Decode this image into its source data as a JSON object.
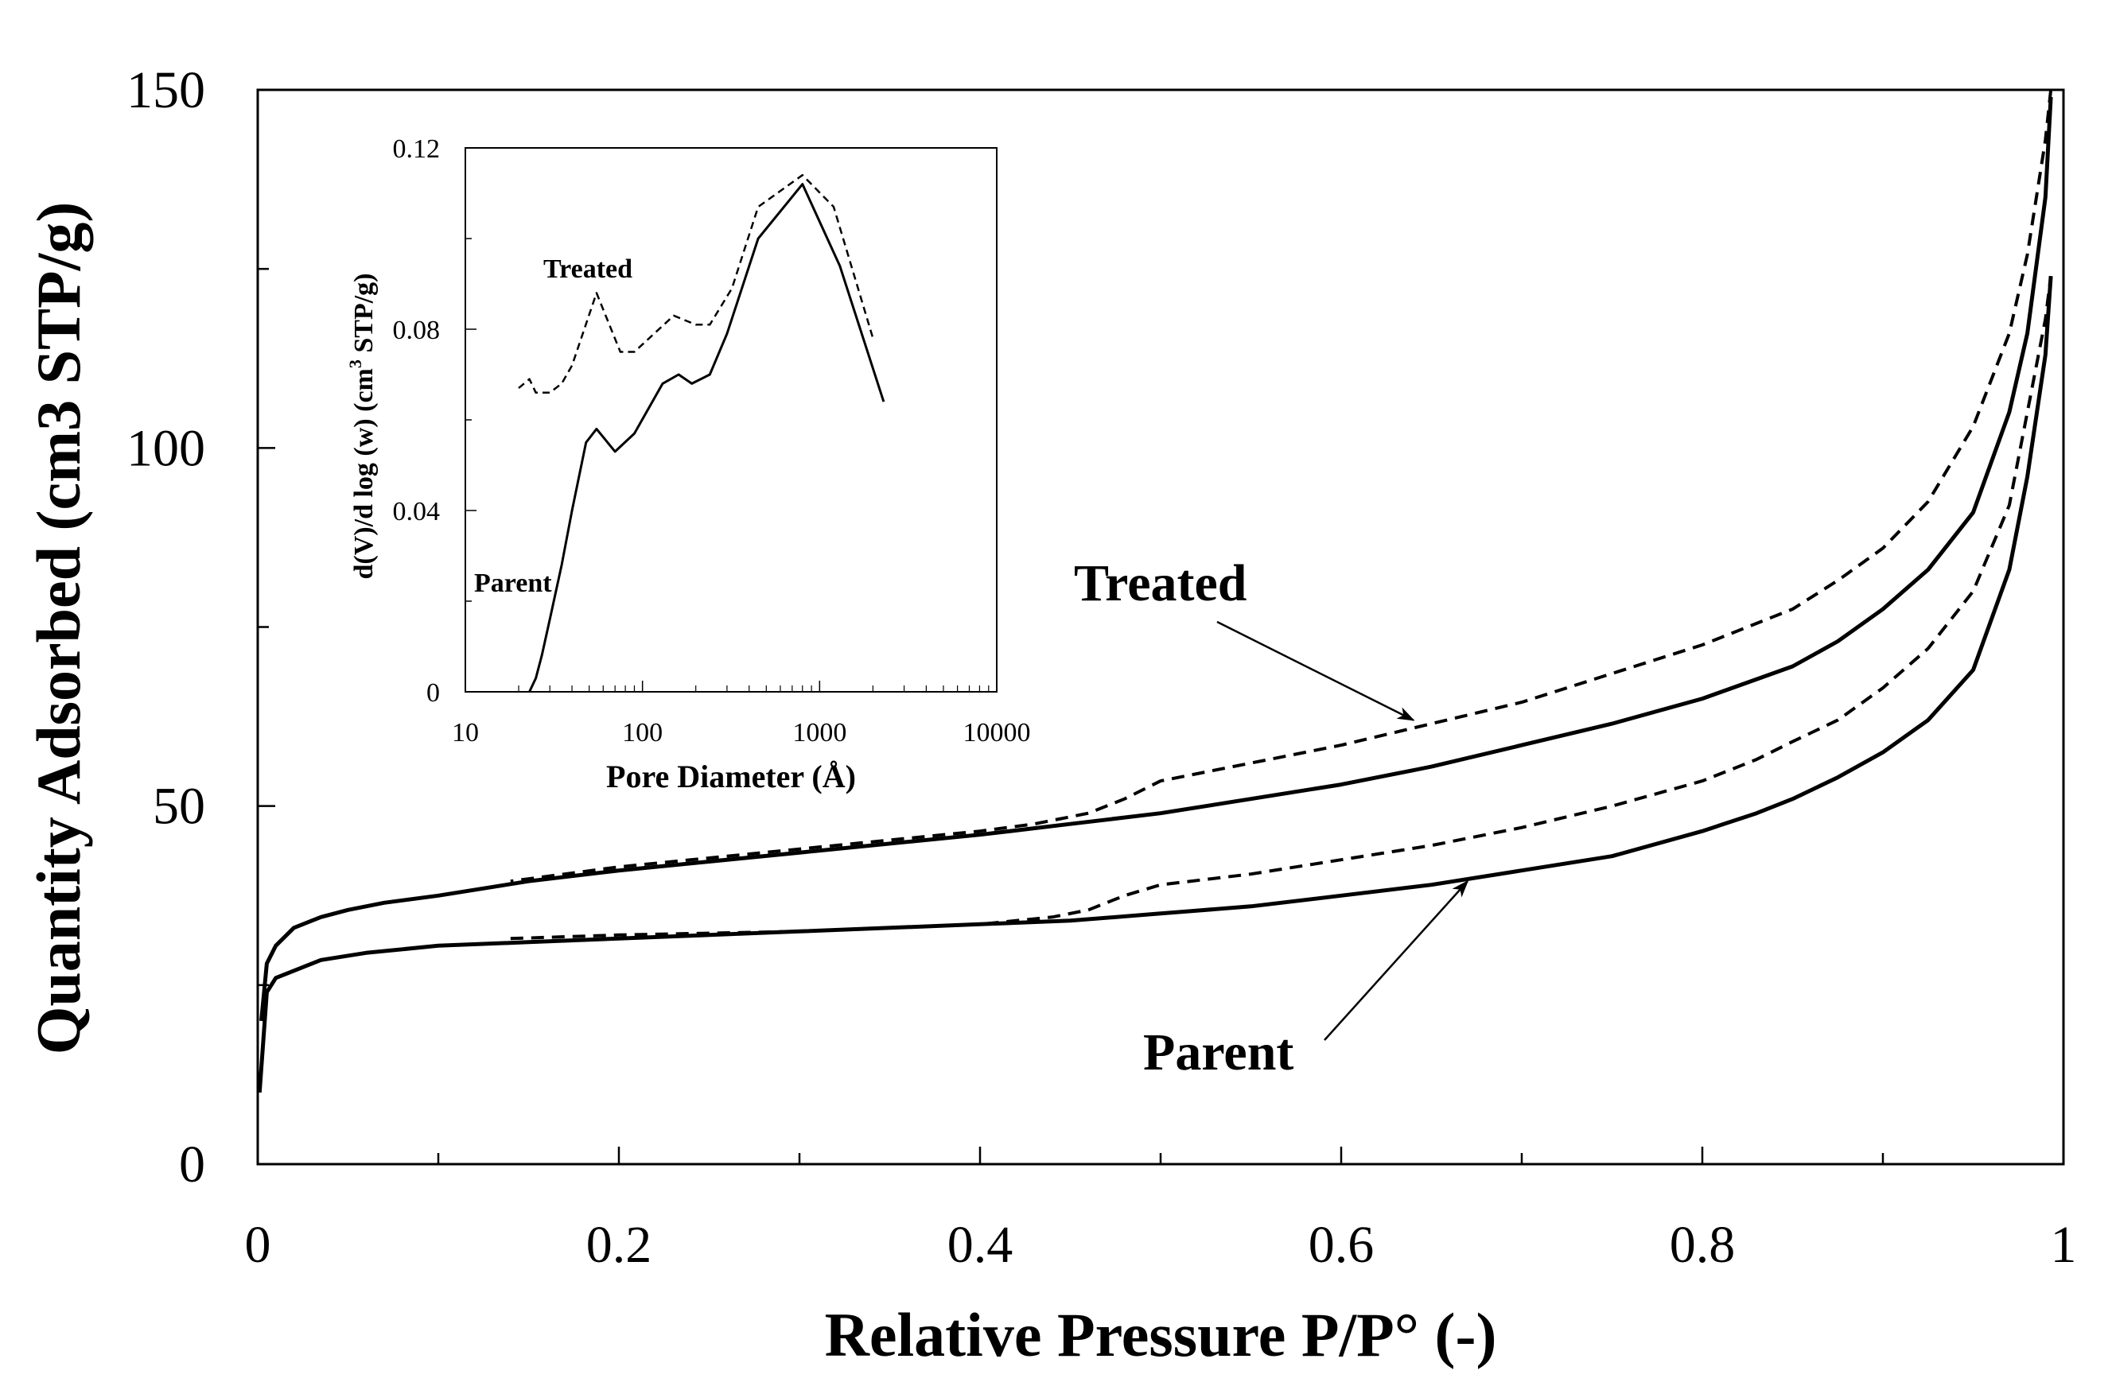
{
  "chart_data": [
    {
      "id": "main",
      "type": "line",
      "title": "",
      "xlabel": "Relative Pressure P/P° (-)",
      "ylabel": "Quantity Adsorbed (cm3 STP/g)",
      "xlim": [
        0,
        1
      ],
      "ylim": [
        0,
        150
      ],
      "xticks": [
        0,
        0.2,
        0.4,
        0.6,
        0.8,
        1
      ],
      "xtick_labels": [
        "0",
        "0.2",
        "0.4",
        "0.6",
        "0.8",
        "1"
      ],
      "yticks": [
        0,
        50,
        100,
        150
      ],
      "ytick_labels": [
        "0",
        "50",
        "100",
        "150"
      ],
      "grid": false,
      "series": [
        {
          "name": "Parent adsorption",
          "style": "solid",
          "x": [
            0.001,
            0.005,
            0.01,
            0.02,
            0.035,
            0.06,
            0.1,
            0.15,
            0.2,
            0.3,
            0.4,
            0.45,
            0.5,
            0.55,
            0.6,
            0.65,
            0.7,
            0.75,
            0.8,
            0.83,
            0.85,
            0.875,
            0.9,
            0.925,
            0.95,
            0.97,
            0.98,
            0.99,
            0.993
          ],
          "y": [
            10,
            24,
            26,
            27,
            28.5,
            29.5,
            30.5,
            31,
            31.5,
            32.5,
            33.5,
            34,
            35,
            36,
            37.5,
            39,
            41,
            43,
            46.5,
            49,
            51,
            54,
            57.5,
            62,
            69,
            83,
            96,
            113,
            124
          ]
        },
        {
          "name": "Parent desorption",
          "style": "solid",
          "x": [
            0.993,
            0.99,
            0.98,
            0.97,
            0.95,
            0.925,
            0.9,
            0.875,
            0.85,
            0.8,
            0.75,
            0.7,
            0.65,
            0.6,
            0.55,
            0.5,
            0.45,
            0.4,
            0.3,
            0.2,
            0.15,
            0.1,
            0.07,
            0.05,
            0.035,
            0.02,
            0.01,
            0.005,
            0.002
          ],
          "y": [
            149,
            135,
            116,
            105,
            91,
            83,
            77.5,
            73,
            69.5,
            65,
            61.5,
            58.5,
            55.5,
            53,
            51,
            49,
            47.5,
            46,
            43.5,
            41,
            39.5,
            37.5,
            36.5,
            35.5,
            34.5,
            33,
            30.5,
            28,
            20
          ]
        },
        {
          "name": "Treated adsorption",
          "style": "dashed",
          "x": [
            0.14,
            0.2,
            0.3,
            0.4,
            0.44,
            0.46,
            0.48,
            0.5,
            0.55,
            0.6,
            0.65,
            0.7,
            0.75,
            0.8,
            0.83,
            0.85,
            0.875,
            0.9,
            0.925,
            0.95,
            0.97,
            0.98,
            0.99,
            0.993
          ],
          "y": [
            31.5,
            32,
            32.5,
            33.5,
            34.5,
            35.5,
            37.5,
            39,
            40.5,
            42.5,
            44.5,
            47,
            50,
            53.5,
            56.5,
            59,
            62,
            66.5,
            72,
            80,
            92,
            105,
            118,
            124
          ]
        },
        {
          "name": "Treated desorption",
          "style": "dashed",
          "x": [
            0.993,
            0.99,
            0.98,
            0.97,
            0.95,
            0.925,
            0.9,
            0.875,
            0.85,
            0.8,
            0.75,
            0.7,
            0.65,
            0.6,
            0.55,
            0.5,
            0.48,
            0.46,
            0.43,
            0.4,
            0.3,
            0.2,
            0.14
          ],
          "y": [
            150,
            143,
            127,
            116,
            103,
            92.5,
            86,
            81.5,
            77.5,
            72.5,
            68.5,
            64.5,
            61.5,
            58.5,
            56,
            53.5,
            51,
            49,
            47.5,
            46.5,
            44,
            41.5,
            39.5
          ]
        }
      ],
      "annotations": [
        {
          "text": "Treated",
          "arrow_to": {
            "x": 0.64,
            "y": 62
          }
        },
        {
          "text": "Parent",
          "arrow_to": {
            "x": 0.67,
            "y": 39.5
          }
        }
      ]
    },
    {
      "id": "inset",
      "type": "line",
      "title": "",
      "xlabel": "Pore Diameter (Å)",
      "ylabel_main": "d(V)/d log (w) (cm",
      "ylabel_sup": "3",
      "ylabel_end": " STP/g)",
      "xscale": "log",
      "xlim": [
        10,
        10000
      ],
      "ylim": [
        0,
        0.12
      ],
      "xticks": [
        10,
        100,
        1000,
        10000
      ],
      "xtick_labels": [
        "10",
        "100",
        "1000",
        "10000"
      ],
      "yticks": [
        0,
        0.04,
        0.08,
        0.12
      ],
      "ytick_labels": [
        "0",
        "0.04",
        "0.08",
        "0.12"
      ],
      "grid": false,
      "series": [
        {
          "name": "Treated",
          "style": "dashed",
          "x": [
            20,
            23,
            25,
            30,
            35,
            40,
            55,
            75,
            90,
            150,
            200,
            240,
            320,
            450,
            800,
            1200,
            2000
          ],
          "y": [
            0.067,
            0.069,
            0.066,
            0.066,
            0.068,
            0.072,
            0.088,
            0.075,
            0.075,
            0.083,
            0.081,
            0.081,
            0.089,
            0.107,
            0.114,
            0.107,
            0.078
          ]
        },
        {
          "name": "Parent",
          "style": "solid",
          "x": [
            23,
            25,
            27,
            30,
            35,
            40,
            48,
            55,
            70,
            90,
            130,
            160,
            190,
            240,
            300,
            450,
            800,
            1300,
            2300
          ],
          "y": [
            0,
            0.003,
            0.008,
            0.016,
            0.028,
            0.04,
            0.055,
            0.058,
            0.053,
            0.057,
            0.068,
            0.07,
            0.068,
            0.07,
            0.079,
            0.1,
            0.112,
            0.094,
            0.064
          ]
        }
      ],
      "annotations": [
        {
          "text": "Treated"
        },
        {
          "text": "Parent"
        }
      ]
    }
  ]
}
